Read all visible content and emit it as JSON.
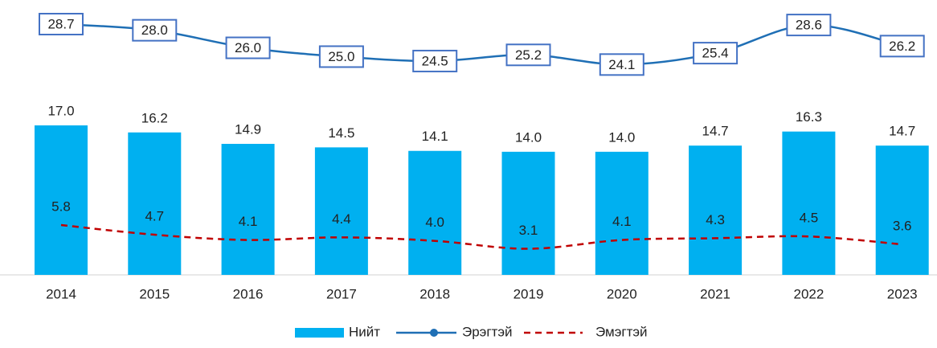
{
  "chart_data": {
    "type": "bar_line",
    "categories": [
      "2014",
      "2015",
      "2016",
      "2017",
      "2018",
      "2019",
      "2020",
      "2021",
      "2022",
      "2023"
    ],
    "series": [
      {
        "name": "Нийт",
        "type": "bar",
        "color": "#00b0f0",
        "values": [
          17.0,
          16.2,
          14.9,
          14.5,
          14.1,
          14.0,
          14.0,
          14.7,
          16.3,
          14.7
        ],
        "value_labels": [
          "17.0",
          "16.2",
          "14.9",
          "14.5",
          "14.1",
          "14.0",
          "14.0",
          "14.7",
          "16.3",
          "14.7"
        ]
      },
      {
        "name": "Эрэгтэй",
        "type": "line",
        "color": "#1f6fb5",
        "values": [
          28.7,
          28.0,
          26.0,
          25.0,
          24.5,
          25.2,
          24.1,
          25.4,
          28.6,
          26.2
        ],
        "value_labels": [
          "28.7",
          "28.0",
          "26.0",
          "25.0",
          "24.5",
          "25.2",
          "24.1",
          "25.4",
          "28.6",
          "26.2"
        ]
      },
      {
        "name": "Эмэгтэй",
        "type": "dashed",
        "color": "#c00000",
        "values": [
          5.8,
          4.7,
          4.1,
          4.4,
          4.0,
          3.1,
          4.1,
          4.3,
          4.5,
          3.6
        ],
        "value_labels": [
          "5.8",
          "4.7",
          "4.1",
          "4.4",
          "4.0",
          "3.1",
          "4.1",
          "4.3",
          "4.5",
          "3.6"
        ]
      }
    ],
    "legend": "bottom"
  }
}
